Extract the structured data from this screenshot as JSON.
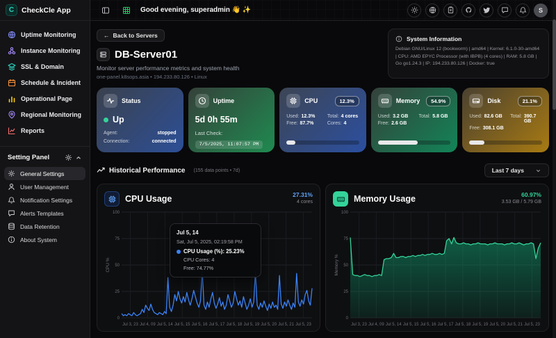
{
  "app": {
    "name": "CheckCle App"
  },
  "colors": {
    "brand_teal": "#2dd4bf",
    "accent_blue": "#3b82f6",
    "accent_green": "#10b981",
    "accent_amber": "#d97706",
    "status_up_green": "#34d399"
  },
  "header": {
    "greeting": "Good evening, superadmin 👋 ✨",
    "avatar_initial": "S"
  },
  "sidebar": {
    "items": [
      {
        "label": "Uptime Monitoring"
      },
      {
        "label": "Instance Monitoring"
      },
      {
        "label": "SSL & Domain"
      },
      {
        "label": "Schedule & Incident"
      },
      {
        "label": "Operational Page"
      },
      {
        "label": "Regional Monitoring"
      },
      {
        "label": "Reports"
      }
    ],
    "settings": {
      "title": "Setting Panel",
      "items": [
        {
          "label": "General Settings"
        },
        {
          "label": "User Management"
        },
        {
          "label": "Notification Settings"
        },
        {
          "label": "Alerts Templates"
        },
        {
          "label": "Data Retention"
        },
        {
          "label": "About System"
        }
      ]
    }
  },
  "page": {
    "back": "Back to Servers",
    "title": "DB-Server01",
    "subtitle": "Monitor server performance metrics and system health",
    "meta": "one-panel.k8sops.asia • 194.233.80.126 • Linux"
  },
  "system_info": {
    "title": "System Information",
    "details": "Debian GNU/Linux 12 (bookworm) | amd64 | Kernel: 6.1.0-30-amd64 | CPU: AMD EPYC Processor (with IBPB) (4 cores) | RAM: 5.8 GB | Go go1.24.3 | IP: 194.233.80.126 | Docker: true"
  },
  "cards": {
    "status": {
      "title": "Status",
      "value": "Up",
      "agent_label": "Agent:",
      "agent_value": "stopped",
      "connection_label": "Connection:",
      "connection_value": "connected"
    },
    "uptime": {
      "title": "Uptime",
      "value": "5d 0h 55m",
      "last_check_label": "Last Check:",
      "last_check_value": "7/5/2025, 11:07:57 PM"
    },
    "cpu": {
      "title": "CPU",
      "badge": "12.3%",
      "used_label": "Used:",
      "used": "12.3%",
      "total_label": "Total:",
      "total": "4 cores",
      "free_label": "Free:",
      "free": "87.7%",
      "cores_label": "Cores:",
      "cores": "4",
      "progress": 12.3
    },
    "memory": {
      "title": "Memory",
      "badge": "54.9%",
      "used_label": "Used:",
      "used": "3.2 GB",
      "total_label": "Total:",
      "total": "5.8 GB",
      "free_label": "Free:",
      "free": "2.6 GB",
      "progress": 54.9
    },
    "disk": {
      "title": "Disk",
      "badge": "21.1%",
      "used_label": "Used:",
      "used": "82.6 GB",
      "total_label": "Total:",
      "total": "390.7 GB",
      "free_label": "Free:",
      "free": "308.1 GB",
      "progress": 21.1
    }
  },
  "historical": {
    "title": "Historical Performance",
    "meta": "(155 data points • 7d)",
    "range": "Last 7 days"
  },
  "chart_data": [
    {
      "type": "line",
      "title": "CPU Usage",
      "header_value": "27.31%",
      "header_sub": "4 cores",
      "ylabel": "CPU %",
      "ylim": [
        0,
        100
      ],
      "yticks": [
        0,
        25,
        50,
        75,
        100
      ],
      "grid": true,
      "x_labels": [
        "Jul 3, 23",
        "Jul 4, 09",
        "Jul 5, 14",
        "Jul 5, 15",
        "Jul 5, 16",
        "Jul 5, 17",
        "Jul 5, 18",
        "Jul 5, 19",
        "Jul 5, 20",
        "Jul 5, 21",
        "Jul 5, 23"
      ],
      "series": [
        {
          "name": "CPU Usage (%)",
          "color": "#3b82f6",
          "values": [
            4,
            2,
            3,
            2,
            4,
            3,
            2,
            5,
            3,
            2,
            3,
            4,
            8,
            5,
            12,
            9,
            7,
            13,
            8,
            5,
            4,
            3,
            5,
            4,
            3,
            6,
            4,
            38,
            10,
            6,
            12,
            22,
            16,
            25,
            18,
            14,
            20,
            15,
            24,
            17,
            12,
            18,
            26,
            20,
            14,
            10,
            16,
            45,
            12,
            8,
            15,
            10,
            18,
            24,
            14,
            9,
            13,
            19,
            11,
            15,
            8,
            12,
            22,
            16,
            10,
            14,
            25,
            18,
            12,
            16,
            10,
            20,
            14,
            8,
            12,
            18,
            10,
            15,
            44,
            12,
            8,
            14,
            10,
            16,
            11,
            7,
            13,
            9,
            15,
            10,
            12,
            8,
            40,
            13,
            9,
            15,
            11,
            17,
            12,
            8,
            14,
            10,
            42,
            15,
            11,
            17,
            13,
            22,
            26,
            16,
            12,
            28
          ]
        }
      ],
      "tooltip": {
        "title": "Jul 5, 14",
        "date": "Sat, Jul 5, 2025, 02:19:58 PM",
        "value": "CPU Usage (%): 25.23%",
        "cores": "CPU Cores: 4",
        "free": "Free: 74.77%"
      }
    },
    {
      "type": "area",
      "title": "Memory Usage",
      "header_value": "60.97%",
      "header_sub": "3.53 GB / 5.79 GB",
      "ylabel": "Memory %",
      "ylim": [
        0,
        100
      ],
      "yticks": [
        0,
        25,
        50,
        75,
        100
      ],
      "grid": true,
      "fill_id": "gradmem",
      "x_labels": [
        "Jul 3, 23",
        "Jul 4, 09",
        "Jul 5, 14",
        "Jul 5, 15",
        "Jul 5, 16",
        "Jul 5, 17",
        "Jul 5, 18",
        "Jul 5, 19",
        "Jul 5, 20",
        "Jul 5, 21",
        "Jul 5, 23"
      ],
      "series": [
        {
          "name": "Memory Usage (%)",
          "color": "#34d399",
          "values": [
            76,
            41,
            40,
            40,
            39,
            40,
            41,
            40,
            40,
            39,
            40,
            40,
            41,
            40,
            55,
            56,
            56,
            57,
            61,
            57,
            57,
            58,
            58,
            57,
            58,
            58,
            59,
            58,
            59,
            59,
            60,
            59,
            60,
            60,
            61,
            60,
            60,
            61,
            60,
            61,
            73,
            75,
            70,
            76,
            71,
            70,
            70,
            71,
            70,
            70,
            69,
            70,
            70,
            71,
            70,
            70,
            70,
            69,
            70,
            70,
            71,
            70,
            70,
            70,
            69,
            70,
            70,
            71,
            70,
            70,
            71,
            70,
            69,
            70,
            70,
            71,
            70,
            56,
            66,
            71
          ]
        }
      ]
    }
  ]
}
